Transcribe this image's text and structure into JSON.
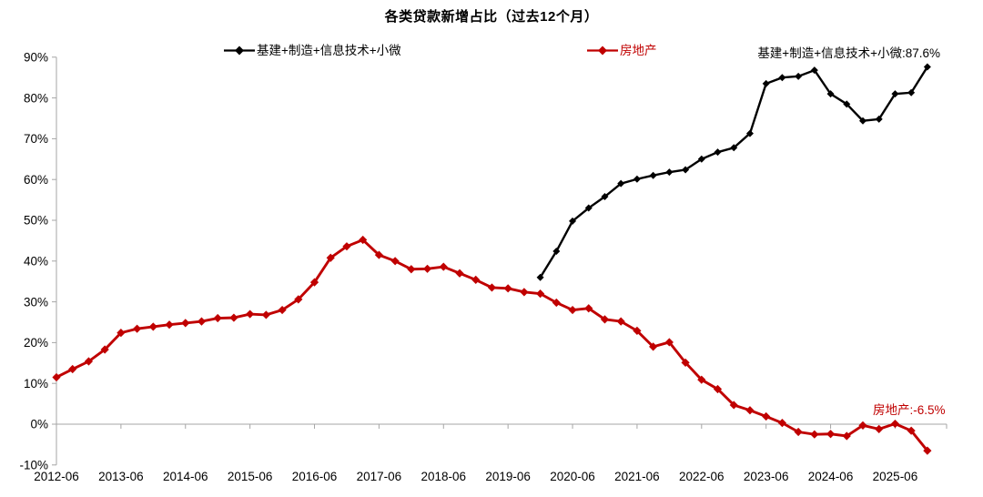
{
  "chart_data": {
    "type": "line",
    "title": "各类贷款新增占比（过去12个月）",
    "xlabel": "",
    "ylabel": "",
    "ylim": [
      -10,
      90
    ],
    "grid": "zero-line-only",
    "legend_position": "top-center",
    "axis_color": "#a6a6a6",
    "categories": [
      "2012-06",
      "2012-09",
      "2012-12",
      "2013-03",
      "2013-06",
      "2013-09",
      "2013-12",
      "2014-03",
      "2014-06",
      "2014-09",
      "2014-12",
      "2015-03",
      "2015-06",
      "2015-09",
      "2015-12",
      "2016-03",
      "2016-06",
      "2016-09",
      "2016-12",
      "2017-03",
      "2017-06",
      "2017-09",
      "2017-12",
      "2018-03",
      "2018-06",
      "2018-09",
      "2018-12",
      "2019-03",
      "2019-06",
      "2019-09",
      "2019-12",
      "2020-03",
      "2020-06",
      "2020-09",
      "2020-12",
      "2021-03",
      "2021-06",
      "2021-09",
      "2021-12",
      "2022-03",
      "2022-06",
      "2022-09",
      "2022-12",
      "2023-03",
      "2023-06",
      "2023-09",
      "2023-12",
      "2024-03",
      "2024-06",
      "2024-09",
      "2024-12",
      "2025-03",
      "2025-06",
      "2025-09",
      "2025-12"
    ],
    "x_tick_labels": [
      "2012-06",
      "2013-06",
      "2014-06",
      "2015-06",
      "2016-06",
      "2017-06",
      "2018-06",
      "2019-06",
      "2020-06",
      "2021-06",
      "2022-06",
      "2023-06",
      "2024-06",
      "2025-06"
    ],
    "y_tick_labels": [
      "90%",
      "80%",
      "70%",
      "60%",
      "50%",
      "40%",
      "30%",
      "20%",
      "10%",
      "0%",
      "-10%"
    ],
    "series": [
      {
        "name": "基建+制造+信息技术+小微",
        "color": "#000000",
        "start_index": 30,
        "values": [
          36.0,
          42.4,
          49.8,
          53.0,
          55.8,
          59.0,
          60.1,
          61.0,
          61.8,
          62.4,
          65.0,
          66.7,
          67.8,
          71.3,
          83.5,
          85.0,
          85.3,
          86.8,
          81.0,
          78.5,
          74.4,
          74.8,
          81.0,
          81.3,
          87.6
        ]
      },
      {
        "name": "房地产",
        "color": "#c00000",
        "start_index": 0,
        "values": [
          11.5,
          13.5,
          15.4,
          18.3,
          22.4,
          23.4,
          23.9,
          24.4,
          24.8,
          25.2,
          26.0,
          26.1,
          27.0,
          26.8,
          28.0,
          30.6,
          34.8,
          40.8,
          43.6,
          45.2,
          41.5,
          40.0,
          38.0,
          38.1,
          38.6,
          37.0,
          35.4,
          33.5,
          33.3,
          32.4,
          32.0,
          29.8,
          28.0,
          28.4,
          25.7,
          25.2,
          22.9,
          19.0,
          20.1,
          15.1,
          10.9,
          8.6,
          4.7,
          3.4,
          1.9,
          0.3,
          -1.9,
          -2.5,
          -2.4,
          -2.9,
          -0.3,
          -1.2,
          0.1,
          -1.6,
          -6.5
        ]
      }
    ],
    "annotations": [
      {
        "text": "基建+制造+信息技术+小微:87.6%",
        "color": "#000000"
      },
      {
        "text": "房地产:-6.5%",
        "color": "#c00000"
      }
    ]
  }
}
